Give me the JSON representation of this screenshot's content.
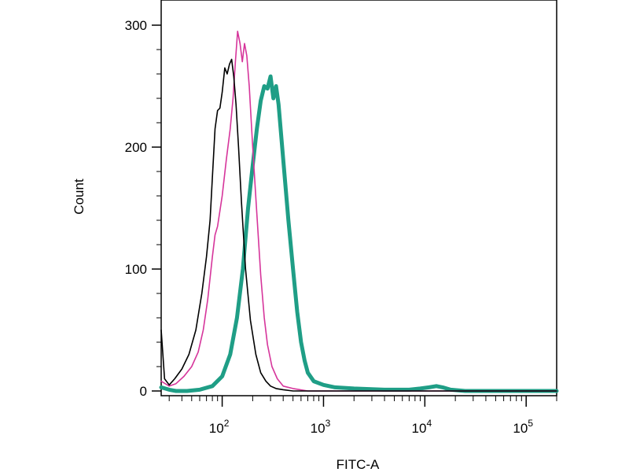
{
  "chart_data": {
    "type": "line",
    "xlabel": "FITC-A",
    "ylabel": "Count",
    "x_scale": "log",
    "xlim": [
      25,
      200000
    ],
    "ylim": [
      0,
      330
    ],
    "x_ticks": [
      {
        "value": 100,
        "base": "10",
        "exp": "2"
      },
      {
        "value": 1000,
        "base": "10",
        "exp": "3"
      },
      {
        "value": 10000,
        "base": "10",
        "exp": "4"
      },
      {
        "value": 100000,
        "base": "10",
        "exp": "5"
      }
    ],
    "y_ticks": [
      {
        "value": 0,
        "label": "0"
      },
      {
        "value": 100,
        "label": "100"
      },
      {
        "value": 200,
        "label": "200"
      },
      {
        "value": 300,
        "label": "300"
      }
    ],
    "grid": false,
    "legend": "none",
    "series": [
      {
        "color": "#000000",
        "line_style": "thin",
        "x": [
          25,
          27,
          30,
          34,
          40,
          47,
          55,
          63,
          70,
          76,
          80,
          85,
          90,
          95,
          100,
          106,
          112,
          118,
          124,
          130,
          137,
          145,
          155,
          170,
          190,
          215,
          240,
          270,
          300,
          340,
          400,
          500,
          700,
          1000,
          200000
        ],
        "y": [
          50,
          10,
          5,
          10,
          18,
          30,
          50,
          80,
          110,
          140,
          175,
          215,
          230,
          232,
          245,
          265,
          260,
          268,
          272,
          258,
          235,
          200,
          155,
          100,
          58,
          30,
          15,
          8,
          4,
          2,
          1,
          0,
          0,
          0,
          0
        ]
      },
      {
        "color": "#d6359b",
        "line_style": "thin",
        "x": [
          25,
          30,
          35,
          42,
          50,
          58,
          65,
          72,
          80,
          85,
          90,
          100,
          110,
          120,
          128,
          135,
          142,
          150,
          158,
          166,
          175,
          185,
          200,
          220,
          240,
          260,
          280,
          310,
          350,
          400,
          500,
          700,
          1000,
          200000
        ],
        "y": [
          8,
          4,
          6,
          12,
          20,
          32,
          50,
          75,
          110,
          128,
          135,
          160,
          190,
          215,
          240,
          270,
          295,
          285,
          270,
          285,
          275,
          250,
          200,
          145,
          95,
          60,
          38,
          20,
          10,
          4,
          2,
          0,
          0,
          0
        ]
      },
      {
        "color": "#1f9e86",
        "line_style": "thick",
        "x": [
          25,
          30,
          35,
          45,
          60,
          80,
          100,
          120,
          140,
          160,
          180,
          200,
          220,
          240,
          260,
          280,
          300,
          320,
          340,
          360,
          400,
          450,
          500,
          550,
          600,
          650,
          700,
          800,
          1000,
          1300,
          2000,
          4000,
          7000,
          9000,
          11000,
          13000,
          15000,
          18000,
          25000,
          50000,
          100000,
          200000
        ],
        "y": [
          3,
          1,
          0,
          0,
          1,
          4,
          12,
          30,
          60,
          100,
          150,
          185,
          215,
          238,
          250,
          248,
          258,
          240,
          250,
          235,
          190,
          140,
          100,
          65,
          40,
          25,
          15,
          8,
          5,
          3,
          2,
          1,
          1,
          2,
          3,
          4,
          3,
          1,
          0,
          0,
          0,
          0
        ]
      }
    ]
  }
}
